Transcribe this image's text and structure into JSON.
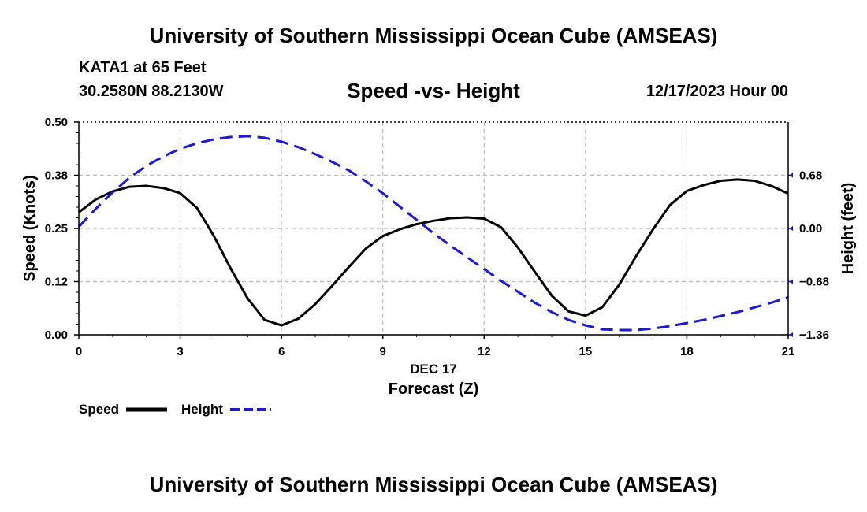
{
  "header": {
    "title": "University of Southern Mississippi Ocean Cube (AMSEAS)",
    "station": "KATA1 at 65 Feet",
    "coords": "30.2580N  88.2130W",
    "subtitle": "Speed -vs- Height",
    "datetime": "12/17/2023 Hour 00"
  },
  "footer": {
    "title": "University of Southern Mississippi Ocean Cube (AMSEAS)"
  },
  "legend": {
    "speed_label": "Speed",
    "height_label": "Height"
  },
  "chart_data": {
    "type": "line",
    "title": "Speed -vs- Height",
    "xlabel": "Forecast (Z)",
    "xlabel_date": "DEC 17",
    "ylabel": "Speed (Knots)",
    "y2label": "Height (feet)",
    "xlim": [
      0,
      21
    ],
    "ylim": [
      0,
      0.5
    ],
    "y2lim": [
      -1.36,
      1.36
    ],
    "x_ticks": [
      0,
      3,
      6,
      9,
      12,
      15,
      18,
      21
    ],
    "x_tick_labels": [
      "0",
      "3",
      "6",
      "9",
      "12",
      "15",
      "18",
      "21"
    ],
    "y_ticks": [
      0,
      0.125,
      0.25,
      0.375,
      0.5
    ],
    "y_tick_labels": [
      "0.00",
      "0.12",
      "0.25",
      "0.38",
      "0.50"
    ],
    "y2_ticks": [
      0.68,
      0,
      -0.68,
      -1.36
    ],
    "y2_tick_labels": [
      "0.68",
      "0.00",
      "−0.68",
      "−1.36"
    ],
    "colors": {
      "speed": "#000000",
      "height": "#1a1ad6",
      "grid": "#bdbdbd"
    },
    "series": [
      {
        "name": "Speed",
        "axis": "left",
        "style": "solid",
        "x": [
          0,
          0.5,
          1,
          1.5,
          2,
          2.5,
          3,
          3.5,
          4,
          4.5,
          5,
          5.5,
          6,
          6.5,
          7,
          7.5,
          8,
          8.5,
          9,
          9.5,
          10,
          10.5,
          11,
          11.5,
          12,
          12.5,
          13,
          13.5,
          14,
          14.5,
          15,
          15.5,
          16,
          16.5,
          17,
          17.5,
          18,
          18.5,
          19,
          19.5,
          20,
          20.5,
          21
        ],
        "values": [
          0.288,
          0.318,
          0.337,
          0.348,
          0.35,
          0.345,
          0.333,
          0.298,
          0.232,
          0.155,
          0.085,
          0.035,
          0.022,
          0.038,
          0.072,
          0.115,
          0.16,
          0.203,
          0.232,
          0.248,
          0.26,
          0.268,
          0.274,
          0.276,
          0.273,
          0.253,
          0.205,
          0.148,
          0.092,
          0.055,
          0.045,
          0.065,
          0.118,
          0.185,
          0.248,
          0.305,
          0.338,
          0.352,
          0.362,
          0.365,
          0.362,
          0.35,
          0.332
        ]
      },
      {
        "name": "Height",
        "axis": "right",
        "style": "dashed",
        "x": [
          0,
          0.5,
          1,
          1.5,
          2,
          2.5,
          3,
          3.5,
          4,
          4.5,
          5,
          5.5,
          6,
          6.5,
          7,
          7.5,
          8,
          8.5,
          9,
          9.5,
          10,
          10.5,
          11,
          11.5,
          12,
          12.5,
          13,
          13.5,
          14,
          14.5,
          15,
          15.5,
          16,
          16.5,
          17,
          17.5,
          18,
          18.5,
          19,
          19.5,
          20,
          20.5,
          21
        ],
        "values": [
          0.02,
          0.25,
          0.46,
          0.65,
          0.8,
          0.92,
          1.02,
          1.09,
          1.14,
          1.17,
          1.18,
          1.16,
          1.11,
          1.04,
          0.95,
          0.85,
          0.74,
          0.6,
          0.45,
          0.28,
          0.11,
          -0.06,
          -0.22,
          -0.37,
          -0.52,
          -0.67,
          -0.81,
          -0.95,
          -1.07,
          -1.17,
          -1.24,
          -1.29,
          -1.3,
          -1.3,
          -1.28,
          -1.25,
          -1.21,
          -1.17,
          -1.12,
          -1.07,
          -1.01,
          -0.95,
          -0.88
        ]
      }
    ]
  }
}
